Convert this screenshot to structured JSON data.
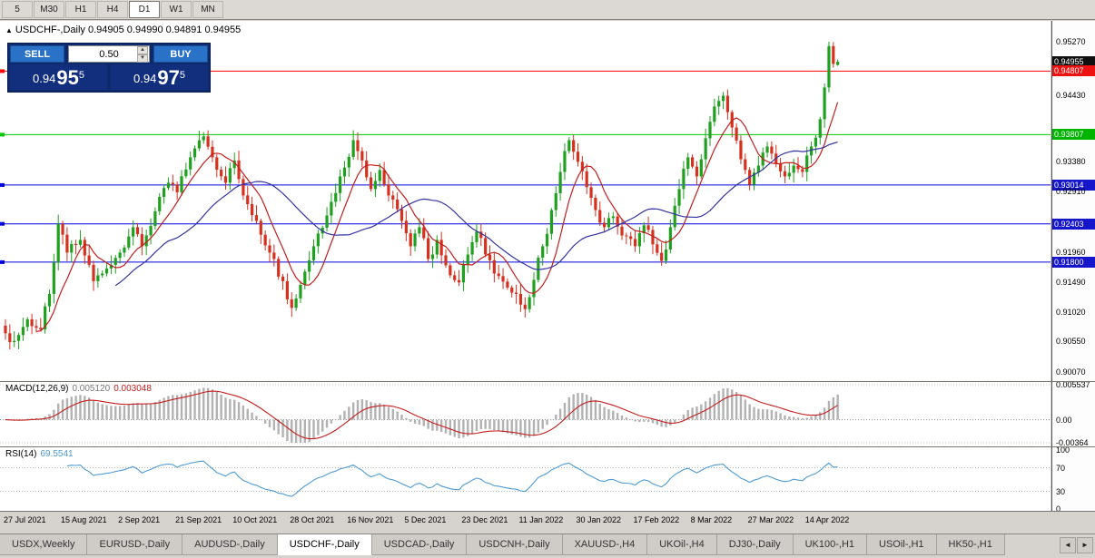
{
  "toolbar": {
    "timeframes": [
      {
        "label": "5",
        "active": false
      },
      {
        "label": "M30",
        "active": false
      },
      {
        "label": "H1",
        "active": false
      },
      {
        "label": "H4",
        "active": false
      },
      {
        "label": "D1",
        "active": true
      },
      {
        "label": "W1",
        "active": false
      },
      {
        "label": "MN",
        "active": false
      }
    ]
  },
  "chart": {
    "symbol_label": "USDCHF-,Daily",
    "ohlc_text": "0.94905 0.94990 0.94891 0.94955"
  },
  "trade_panel": {
    "sell_label": "SELL",
    "buy_label": "BUY",
    "volume": "0.50",
    "sell_price": {
      "prefix": "0.94",
      "big": "95",
      "sup": "5"
    },
    "buy_price": {
      "prefix": "0.94",
      "big": "97",
      "sup": "5"
    }
  },
  "icons": {
    "symbol_marker": "▲",
    "spin_up": "▲",
    "spin_down": "▼",
    "tab_scroll_left": "◄",
    "tab_scroll_right": "►"
  },
  "price_axis": {
    "labels": [
      {
        "value": "0.95270",
        "badge": null
      },
      {
        "value": "0.94955",
        "badge": "#101010"
      },
      {
        "value": "0.94807",
        "badge": "#ee1111"
      },
      {
        "value": "0.94430",
        "badge": null
      },
      {
        "value": "0.93807",
        "badge": "#00b400"
      },
      {
        "value": "0.93380",
        "badge": null
      },
      {
        "value": "0.93014",
        "badge": "#1515cc"
      },
      {
        "value": "0.92910",
        "badge": null
      },
      {
        "value": "0.92403",
        "badge": "#1515cc"
      },
      {
        "value": "0.91960",
        "badge": null
      },
      {
        "value": "0.91800",
        "badge": "#1515cc"
      },
      {
        "value": "0.91490",
        "badge": null
      },
      {
        "value": "0.91020",
        "badge": null
      },
      {
        "value": "0.90550",
        "badge": null
      },
      {
        "value": "0.90070",
        "badge": null
      }
    ]
  },
  "macd_panel": {
    "label": "MACD(12,26,9)",
    "value_main": "0.005120",
    "value_signal": "0.003048",
    "axis_labels": [
      "0.005537",
      "0.00",
      "-0.00364"
    ]
  },
  "rsi_panel": {
    "label": "RSI(14)",
    "value": "69.5541",
    "axis_labels": [
      "100",
      "70",
      "30",
      "0"
    ],
    "level_lines": [
      70,
      30
    ]
  },
  "dates": [
    "27 Jul 2021",
    "15 Aug 2021",
    "2 Sep 2021",
    "21 Sep 2021",
    "10 Oct 2021",
    "28 Oct 2021",
    "16 Nov 2021",
    "5 Dec 2021",
    "23 Dec 2021",
    "11 Jan 2022",
    "30 Jan 2022",
    "17 Feb 2022",
    "8 Mar 2022",
    "27 Mar 2022",
    "14 Apr 2022"
  ],
  "tabs": [
    {
      "label": "USDX,Weekly",
      "active": false
    },
    {
      "label": "EURUSD-,Daily",
      "active": false
    },
    {
      "label": "AUDUSD-,Daily",
      "active": false
    },
    {
      "label": "USDCHF-,Daily",
      "active": true
    },
    {
      "label": "USDCAD-,Daily",
      "active": false
    },
    {
      "label": "USDCNH-,Daily",
      "active": false
    },
    {
      "label": "XAUUSD-,H4",
      "active": false
    },
    {
      "label": "UKOil-,H4",
      "active": false
    },
    {
      "label": "DJ30-,Daily",
      "active": false
    },
    {
      "label": "UK100-,H1",
      "active": false
    },
    {
      "label": "USOil-,H1",
      "active": false
    },
    {
      "label": "HK50-,H1",
      "active": false
    }
  ],
  "colors": {
    "candle_up": "#1fa11f",
    "candle_down": "#d6311f",
    "ma_fast": "#c41e1e",
    "ma_slow": "#3434a0",
    "macd_hist": "#b2b2b2",
    "macd_signal": "#c41e1e",
    "rsi_line": "#4f9bd5"
  },
  "chart_data": {
    "type": "candlestick",
    "symbol": "USDCHF",
    "timeframe": "Daily",
    "bars": 190,
    "price_range": {
      "min": 0.9007,
      "max": 0.9527
    },
    "x_labels": [
      "27 Jul 2021",
      "15 Aug 2021",
      "2 Sep 2021",
      "21 Sep 2021",
      "10 Oct 2021",
      "28 Oct 2021",
      "16 Nov 2021",
      "5 Dec 2021",
      "23 Dec 2021",
      "11 Jan 2022",
      "30 Jan 2022",
      "17 Feb 2022",
      "8 Mar 2022",
      "27 Mar 2022",
      "14 Apr 2022"
    ],
    "bars_per_label": 13,
    "anchors": [
      [
        0,
        0.9068
      ],
      [
        2,
        0.9056
      ],
      [
        5,
        0.909
      ],
      [
        8,
        0.9074
      ],
      [
        10,
        0.913
      ],
      [
        12,
        0.924
      ],
      [
        14,
        0.9195
      ],
      [
        17,
        0.9215
      ],
      [
        20,
        0.915
      ],
      [
        23,
        0.917
      ],
      [
        26,
        0.9195
      ],
      [
        29,
        0.9235
      ],
      [
        31,
        0.9205
      ],
      [
        34,
        0.926
      ],
      [
        37,
        0.9305
      ],
      [
        39,
        0.929
      ],
      [
        42,
        0.9345
      ],
      [
        45,
        0.9378
      ],
      [
        47,
        0.9345
      ],
      [
        50,
        0.9305
      ],
      [
        52,
        0.934
      ],
      [
        54,
        0.9285
      ],
      [
        57,
        0.9245
      ],
      [
        60,
        0.9195
      ],
      [
        63,
        0.915
      ],
      [
        65,
        0.9108
      ],
      [
        68,
        0.9165
      ],
      [
        71,
        0.9225
      ],
      [
        74,
        0.9275
      ],
      [
        76,
        0.9315
      ],
      [
        79,
        0.9372
      ],
      [
        81,
        0.934
      ],
      [
        83,
        0.9295
      ],
      [
        85,
        0.9325
      ],
      [
        87,
        0.9285
      ],
      [
        90,
        0.9245
      ],
      [
        92,
        0.9205
      ],
      [
        94,
        0.9235
      ],
      [
        96,
        0.9185
      ],
      [
        98,
        0.9215
      ],
      [
        100,
        0.9175
      ],
      [
        103,
        0.9148
      ],
      [
        105,
        0.9192
      ],
      [
        107,
        0.9228
      ],
      [
        109,
        0.9192
      ],
      [
        112,
        0.9158
      ],
      [
        115,
        0.9132
      ],
      [
        118,
        0.9106
      ],
      [
        120,
        0.9152
      ],
      [
        122,
        0.9205
      ],
      [
        124,
        0.9262
      ],
      [
        126,
        0.9322
      ],
      [
        128,
        0.9372
      ],
      [
        130,
        0.9338
      ],
      [
        132,
        0.9298
      ],
      [
        134,
        0.9262
      ],
      [
        136,
        0.9235
      ],
      [
        138,
        0.9252
      ],
      [
        140,
        0.9222
      ],
      [
        143,
        0.9205
      ],
      [
        145,
        0.9238
      ],
      [
        147,
        0.9208
      ],
      [
        149,
        0.9182
      ],
      [
        151,
        0.9235
      ],
      [
        153,
        0.9295
      ],
      [
        155,
        0.9345
      ],
      [
        157,
        0.9315
      ],
      [
        159,
        0.9375
      ],
      [
        161,
        0.9425
      ],
      [
        163,
        0.9442
      ],
      [
        165,
        0.9392
      ],
      [
        167,
        0.9342
      ],
      [
        169,
        0.9302
      ],
      [
        171,
        0.9332
      ],
      [
        173,
        0.9362
      ],
      [
        175,
        0.9335
      ],
      [
        177,
        0.9315
      ],
      [
        179,
        0.9332
      ],
      [
        181,
        0.9322
      ],
      [
        183,
        0.9362
      ],
      [
        185,
        0.9405
      ],
      [
        186,
        0.9455
      ],
      [
        187,
        0.952
      ],
      [
        188,
        0.9492
      ],
      [
        189,
        0.94955
      ]
    ],
    "last_candle": {
      "open": 0.94905,
      "high": 0.9499,
      "low": 0.94891,
      "close": 0.94955
    },
    "spike_high": 0.9527,
    "levels": [
      {
        "price": 0.94807,
        "color": "#ff0000"
      },
      {
        "price": 0.93807,
        "color": "#00c800"
      },
      {
        "price": 0.93014,
        "color": "#0000e0"
      },
      {
        "price": 0.92403,
        "color": "#0000e0"
      },
      {
        "price": 0.918,
        "color": "#0000e0"
      }
    ],
    "moving_averages": [
      {
        "period": 8,
        "color": "#c41e1e"
      },
      {
        "period": 26,
        "color": "#3434a0"
      }
    ],
    "indicators": [
      {
        "name": "MACD",
        "params": [
          12,
          26,
          9
        ],
        "current_main": 0.00512,
        "current_signal": 0.003048,
        "scale": {
          "max": 0.005537,
          "min": -0.00364
        }
      },
      {
        "name": "RSI",
        "params": [
          14
        ],
        "current": 69.5541,
        "scale": {
          "max": 100,
          "min": 0
        },
        "levels": [
          70,
          30
        ]
      }
    ]
  }
}
